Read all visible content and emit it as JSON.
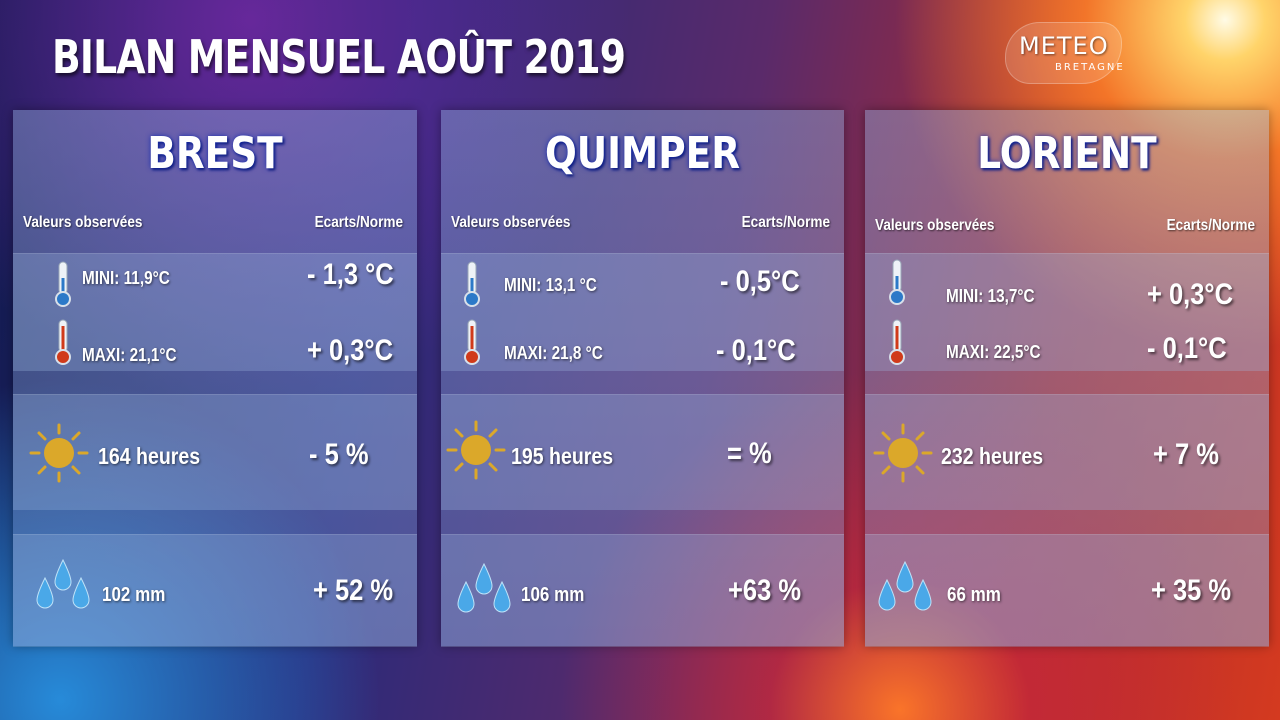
{
  "title": "BILAN MENSUEL AOÛT 2019",
  "logo": {
    "main": "METEO",
    "sub": "BRETAGNE"
  },
  "headers": {
    "observed": "Valeurs observées",
    "deviation": "Ecarts/Norme"
  },
  "icons": {
    "cold": "thermometer-cold-icon",
    "hot": "thermometer-hot-icon",
    "sun": "sun-icon",
    "rain": "raindrops-icon"
  },
  "colors": {
    "sun": "#dba82a",
    "cold": "#2c79c8",
    "hot": "#d03a1a",
    "drop": "#4aa8e8"
  },
  "cities": [
    {
      "name": "BREST",
      "mini": "MINI: 11,9°C",
      "mini_dev": "- 1,3 °C",
      "maxi": "MAXI: 21,1°C",
      "maxi_dev": "+ 0,3°C",
      "sun": "164 heures",
      "sun_dev": "- 5 %",
      "rain": "102 mm",
      "rain_dev": "+ 52 %"
    },
    {
      "name": "QUIMPER",
      "mini": "MINI:  13,1 °C",
      "mini_dev": "-  0,5°C",
      "maxi": "MAXI: 21,8 °C",
      "maxi_dev": "-   0,1°C",
      "sun": "195 heures",
      "sun_dev": "=   %",
      "rain": "106  mm",
      "rain_dev": "+63 %"
    },
    {
      "name": "LORIENT",
      "mini": "MINI: 13,7°C",
      "mini_dev": "+  0,3°C",
      "maxi": "MAXI: 22,5°C",
      "maxi_dev": "-  0,1°C",
      "sun": "232 heures",
      "sun_dev": "+ 7 %",
      "rain": "66 mm",
      "rain_dev": "+ 35 %"
    }
  ]
}
